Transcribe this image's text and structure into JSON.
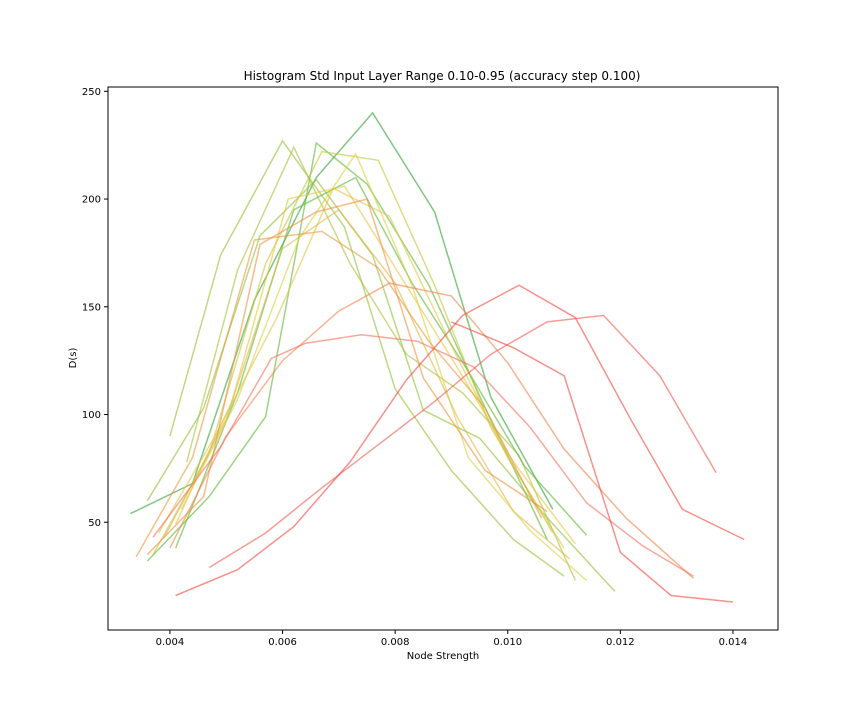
{
  "chart_data": {
    "type": "line",
    "title": "Histogram Std Input Layer Range 0.10-0.95 (accuracy step 0.100)",
    "xlabel": "Node Strength",
    "ylabel": "D(s)",
    "xlim": [
      0.0029,
      0.0148
    ],
    "ylim": [
      0,
      252
    ],
    "xticks": [
      0.004,
      0.006,
      0.008,
      0.01,
      0.012,
      0.014
    ],
    "xtick_labels": [
      "0.004",
      "0.006",
      "0.008",
      "0.010",
      "0.012",
      "0.014"
    ],
    "yticks": [
      50,
      100,
      150,
      200,
      250
    ],
    "ytick_labels": [
      "50",
      "100",
      "150",
      "200",
      "250"
    ],
    "grid": false,
    "series": [
      {
        "color": "#2ca02c",
        "x": [
          0.0033,
          0.0044,
          0.0055,
          0.0066,
          0.0076,
          0.0087,
          0.0097,
          0.0108
        ],
        "y": [
          54,
          68,
          153,
          210,
          240,
          194,
          108,
          56
        ]
      },
      {
        "color": "#5cb82e",
        "x": [
          0.0036,
          0.0047,
          0.0057,
          0.0066,
          0.0075,
          0.0086,
          0.0096,
          0.0107
        ],
        "y": [
          32,
          62,
          99,
          226,
          207,
          160,
          103,
          42
        ]
      },
      {
        "color": "#8fbf30",
        "x": [
          0.004,
          0.0049,
          0.006,
          0.0071,
          0.008,
          0.009,
          0.0101,
          0.011
        ],
        "y": [
          90,
          174,
          227,
          187,
          112,
          74,
          42,
          25
        ]
      },
      {
        "color": "#8fbf30",
        "x": [
          0.0036,
          0.0046,
          0.0056,
          0.0066,
          0.0076,
          0.0085,
          0.0095,
          0.0106,
          0.0119
        ],
        "y": [
          60,
          103,
          183,
          209,
          174,
          102,
          89,
          55,
          18
        ]
      },
      {
        "color": "#a8c238",
        "x": [
          0.0043,
          0.0052,
          0.0062,
          0.0072,
          0.0082,
          0.0092,
          0.0102,
          0.0112
        ],
        "y": [
          78,
          167,
          224,
          170,
          128,
          110,
          81,
          23
        ]
      },
      {
        "color": "#5cb82e",
        "x": [
          0.0041,
          0.0052,
          0.0062,
          0.0073,
          0.0083,
          0.0093,
          0.0103,
          0.0114
        ],
        "y": [
          38,
          110,
          195,
          210,
          161,
          120,
          76,
          44
        ]
      },
      {
        "color": "#c4c43a",
        "x": [
          0.0037,
          0.0047,
          0.0057,
          0.0067,
          0.0077,
          0.0087,
          0.0097,
          0.0108
        ],
        "y": [
          35,
          82,
          170,
          222,
          218,
          160,
          94,
          45
        ]
      },
      {
        "color": "#e0c441",
        "x": [
          0.0038,
          0.0048,
          0.0059,
          0.0069,
          0.0079,
          0.009,
          0.01,
          0.011
        ],
        "y": [
          45,
          90,
          145,
          205,
          192,
          132,
          80,
          38
        ]
      },
      {
        "color": "#e8c53e",
        "x": [
          0.0041,
          0.0051,
          0.0061,
          0.0071,
          0.0081,
          0.0091,
          0.0101,
          0.0112
        ],
        "y": [
          49,
          106,
          200,
          206,
          164,
          122,
          78,
          40
        ]
      },
      {
        "color": "#e0b844",
        "x": [
          0.0039,
          0.005,
          0.006,
          0.007,
          0.008,
          0.0091,
          0.0101,
          0.0111
        ],
        "y": [
          43,
          98,
          177,
          195,
          161,
          99,
          55,
          33
        ]
      },
      {
        "color": "#d9d040",
        "x": [
          0.0042,
          0.0052,
          0.0063,
          0.0073,
          0.0083,
          0.0093,
          0.0104,
          0.0114
        ],
        "y": [
          56,
          107,
          182,
          221,
          160,
          80,
          46,
          23
        ]
      },
      {
        "color": "#e89a3c",
        "x": [
          0.0034,
          0.0044,
          0.0055,
          0.0067,
          0.0077,
          0.0086,
          0.0096,
          0.0106
        ],
        "y": [
          34,
          80,
          181,
          185,
          168,
          134,
          103,
          52
        ]
      },
      {
        "color": "#f0903e",
        "x": [
          0.0036,
          0.0046,
          0.0056,
          0.0066,
          0.0075,
          0.0085,
          0.0096,
          0.0107
        ],
        "y": [
          35,
          62,
          179,
          194,
          200,
          117,
          74,
          55
        ]
      },
      {
        "color": "#f48048",
        "x": [
          0.004,
          0.005,
          0.006,
          0.007,
          0.0079,
          0.009,
          0.01,
          0.011,
          0.0121,
          0.0133
        ],
        "y": [
          38,
          90,
          125,
          148,
          161,
          155,
          124,
          84,
          52,
          24
        ]
      },
      {
        "color": "#f5705a",
        "x": [
          0.0037,
          0.0049,
          0.0058,
          0.0064,
          0.0074,
          0.0084,
          0.0094,
          0.0104,
          0.0114,
          0.0124,
          0.0133
        ],
        "y": [
          43,
          85,
          126,
          133,
          137,
          134,
          122,
          94,
          59,
          39,
          25
        ]
      },
      {
        "color": "#f05a50",
        "x": [
          0.0047,
          0.0057,
          0.0067,
          0.0077,
          0.0087,
          0.0097,
          0.0107,
          0.0117,
          0.0127,
          0.0137
        ],
        "y": [
          29,
          45,
          66,
          86,
          106,
          128,
          143,
          146,
          118,
          73
        ]
      },
      {
        "color": "#f04840",
        "x": [
          0.0041,
          0.0052,
          0.0062,
          0.0072,
          0.0082,
          0.0092,
          0.0102,
          0.0112,
          0.0122,
          0.0131,
          0.0142
        ],
        "y": [
          16,
          28,
          48,
          78,
          116,
          146,
          160,
          145,
          97,
          56,
          42
        ]
      },
      {
        "color": "#f04840",
        "x": [
          0.009,
          0.0101,
          0.011,
          0.012,
          0.0129,
          0.014
        ],
        "y": [
          143,
          131,
          118,
          36,
          16,
          13
        ]
      }
    ]
  }
}
